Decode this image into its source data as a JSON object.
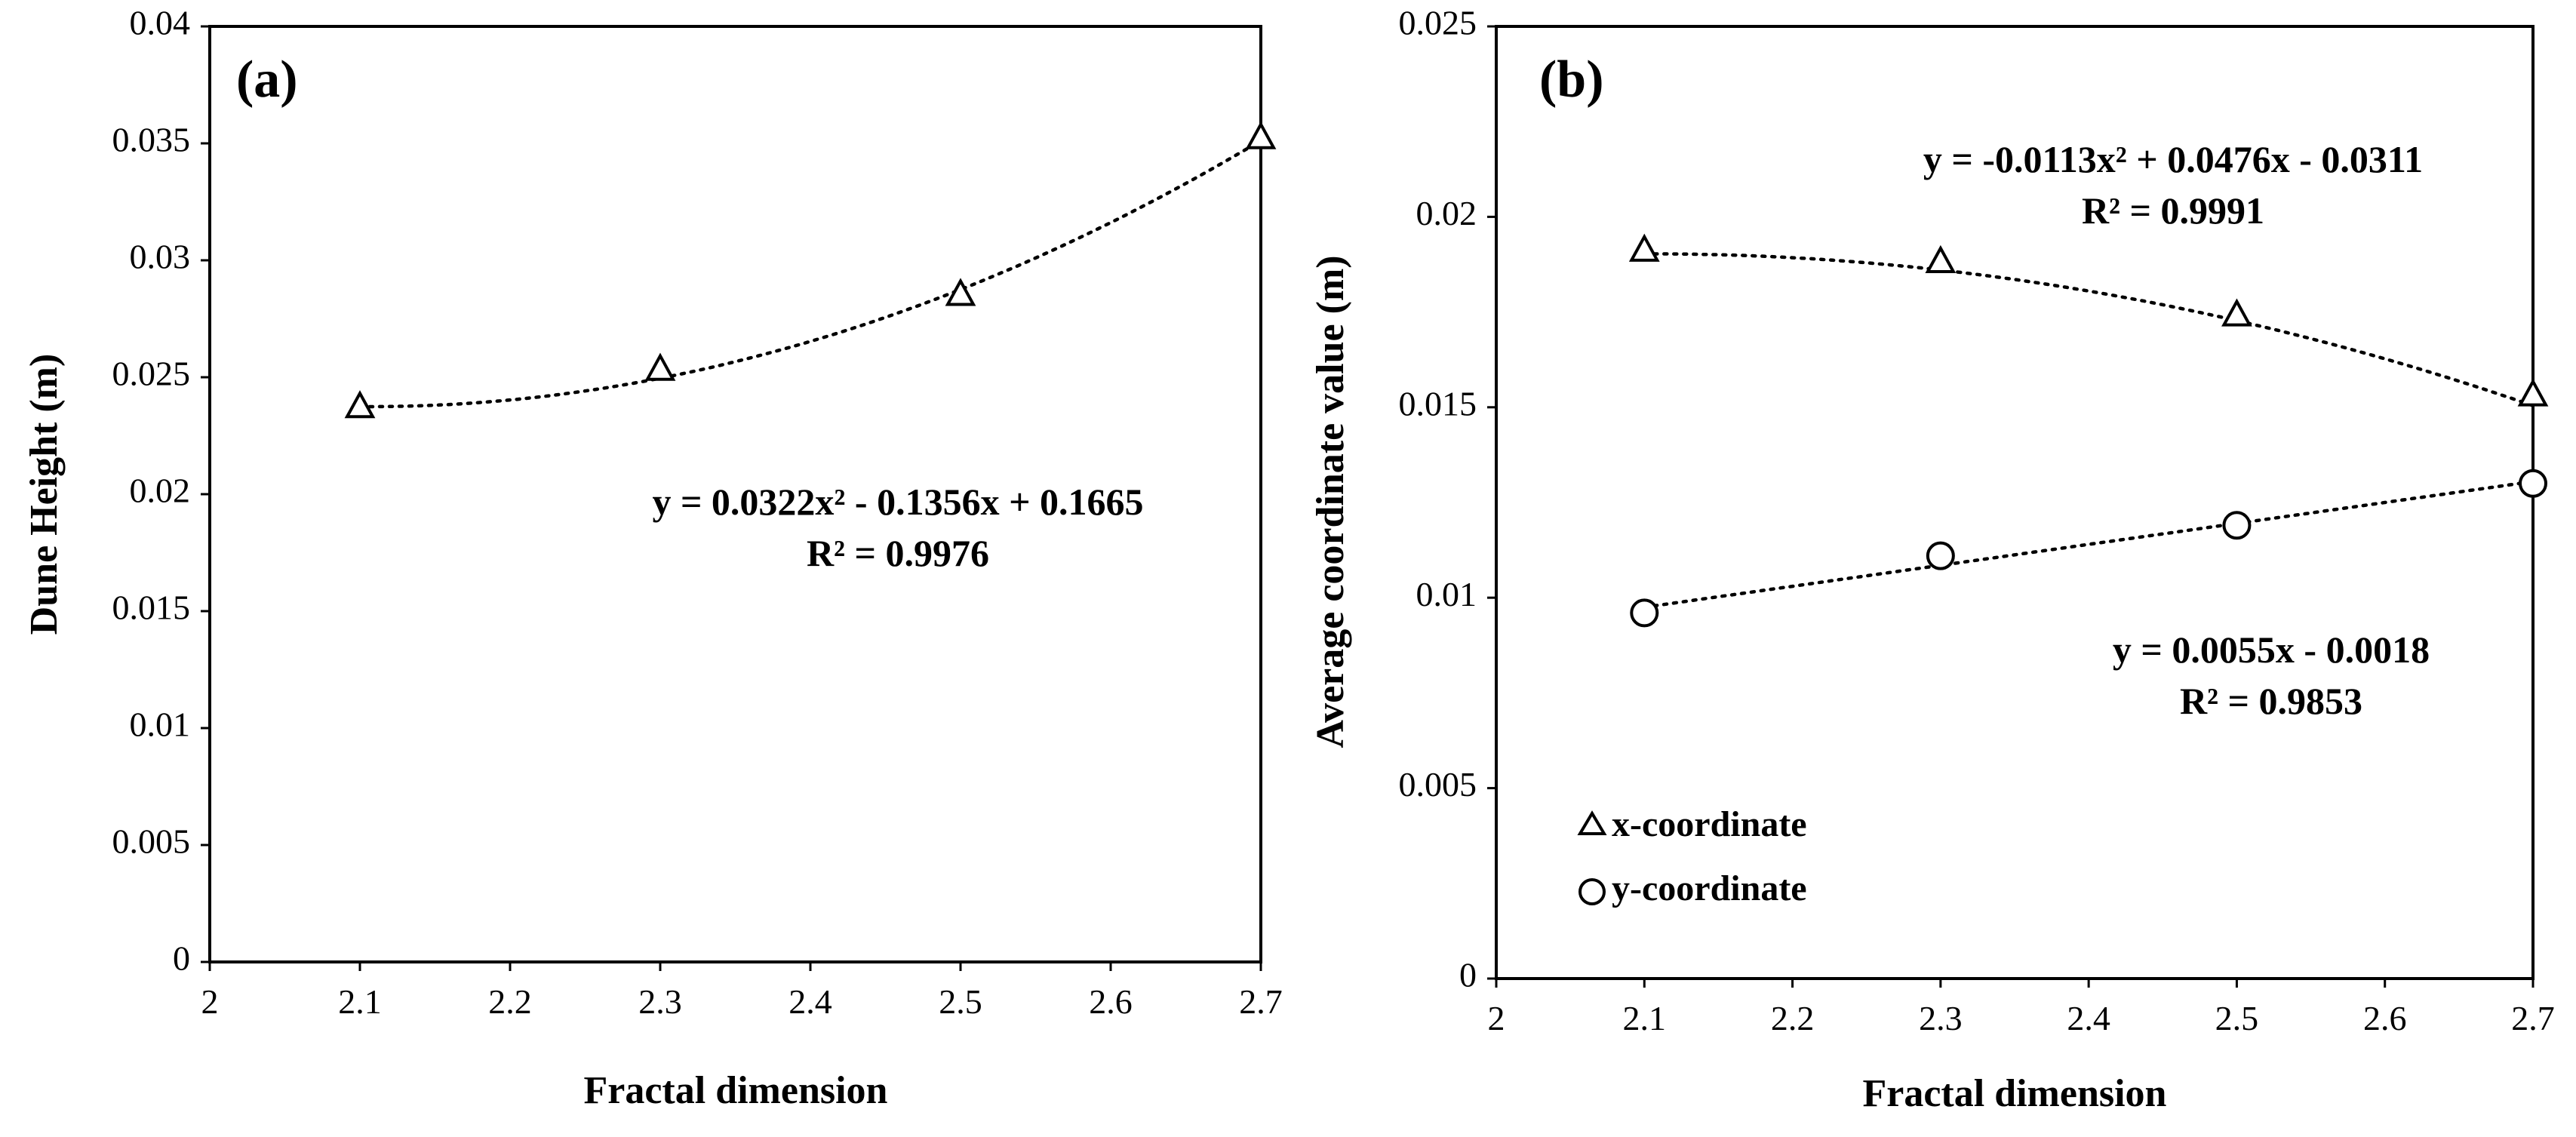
{
  "chart_data": [
    {
      "type": "scatter",
      "panel_label": "(a)",
      "xlabel": "Fractal dimension",
      "ylabel": "Dune Height (m)",
      "xlim": [
        2,
        2.7
      ],
      "ylim": [
        0,
        0.04
      ],
      "x_ticks": [
        "2",
        "2.1",
        "2.2",
        "2.3",
        "2.4",
        "2.5",
        "2.6",
        "2.7"
      ],
      "y_ticks": [
        "0",
        "0.005",
        "0.01",
        "0.015",
        "0.02",
        "0.025",
        "0.03",
        "0.035",
        "0.04"
      ],
      "series": [
        {
          "name": "Dune height",
          "marker": "triangle",
          "x": [
            2.1,
            2.3,
            2.5,
            2.7
          ],
          "y": [
            0.0237,
            0.0253,
            0.0285,
            0.0352
          ],
          "trendline": {
            "kind": "poly2",
            "coef": [
              0.0322,
              -0.1356,
              0.1665
            ]
          },
          "equation": "y = 0.0322x² - 0.1356x + 0.1665",
          "r2": "R² = 0.9976"
        }
      ]
    },
    {
      "type": "scatter",
      "panel_label": "(b)",
      "xlabel": "Fractal dimension",
      "ylabel": "Average coordinate value (m)",
      "xlim": [
        2,
        2.7
      ],
      "ylim": [
        0,
        0.025
      ],
      "x_ticks": [
        "2",
        "2.1",
        "2.2",
        "2.3",
        "2.4",
        "2.5",
        "2.6",
        "2.7"
      ],
      "y_ticks": [
        "0",
        "0.005",
        "0.01",
        "0.015",
        "0.02",
        "0.025"
      ],
      "legend": [
        "x-coordinate",
        "y-coordinate"
      ],
      "series": [
        {
          "name": "x-coordinate",
          "marker": "triangle",
          "x": [
            2.1,
            2.3,
            2.5,
            2.7
          ],
          "y": [
            0.0191,
            0.0188,
            0.0174,
            0.0153
          ],
          "trendline": {
            "kind": "poly2",
            "coef": [
              -0.0113,
              0.0476,
              -0.0311
            ]
          },
          "equation": "y = -0.0113x² + 0.0476x - 0.0311",
          "r2": "R² = 0.9991"
        },
        {
          "name": "y-coordinate",
          "marker": "circle",
          "x": [
            2.1,
            2.3,
            2.5,
            2.7
          ],
          "y": [
            0.0096,
            0.0111,
            0.0119,
            0.013
          ],
          "trendline": {
            "kind": "linear",
            "coef": [
              0.0055,
              -0.0018
            ]
          },
          "equation": "y = 0.0055x - 0.0018",
          "r2": "R² = 0.9853"
        }
      ]
    }
  ]
}
